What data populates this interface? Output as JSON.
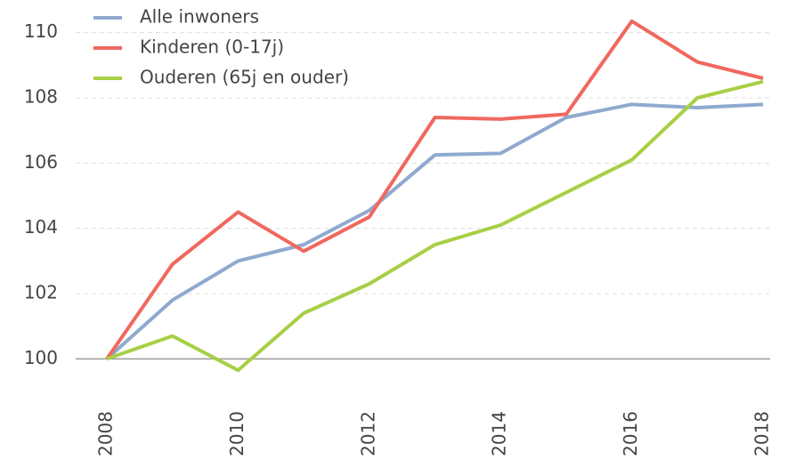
{
  "chart_data": {
    "type": "line",
    "x": [
      2008,
      2009,
      2010,
      2011,
      2012,
      2013,
      2014,
      2015,
      2016,
      2017,
      2018
    ],
    "series": [
      {
        "name": "Alle inwoners",
        "color": "#8fa9cf",
        "values": [
          100,
          101.8,
          103.0,
          103.5,
          104.55,
          106.25,
          106.3,
          107.4,
          107.8,
          107.7,
          107.8
        ]
      },
      {
        "name": "Kinderen (0-17j)",
        "color": "#f0685e",
        "values": [
          100,
          102.9,
          104.5,
          103.3,
          104.35,
          107.4,
          107.35,
          107.5,
          110.35,
          109.1,
          108.6
        ]
      },
      {
        "name": "Ouderen (65j en ouder)",
        "color": "#a8cf45",
        "values": [
          100,
          100.7,
          99.65,
          101.4,
          102.3,
          103.5,
          104.1,
          105.1,
          106.1,
          108.0,
          108.5
        ]
      }
    ],
    "xlim": [
      2008,
      2018
    ],
    "xticks": [
      2008,
      2010,
      2012,
      2014,
      2016,
      2018
    ],
    "ylim": [
      99,
      111
    ],
    "yticks": [
      100,
      102,
      104,
      106,
      108,
      110
    ],
    "grid": true,
    "legend": "top-left"
  }
}
